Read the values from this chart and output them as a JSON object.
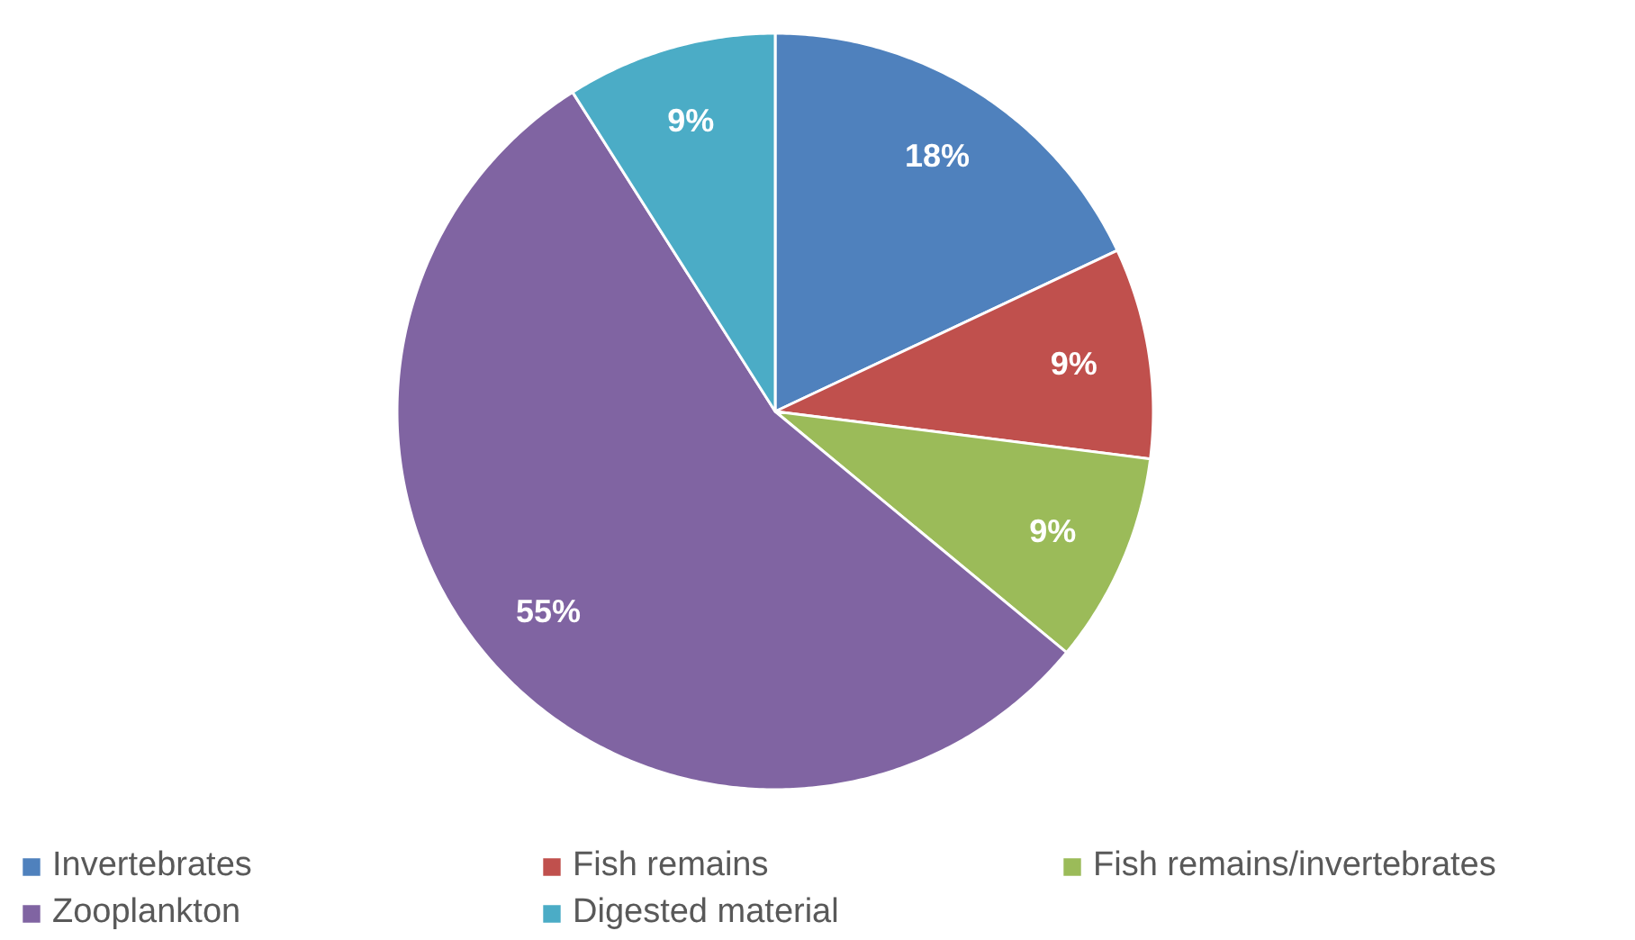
{
  "chart_data": {
    "type": "pie",
    "categories": [
      "Invertebrates",
      "Fish remains",
      "Fish remains/invertebrates",
      "Zooplankton",
      "Digested material"
    ],
    "values": [
      18,
      9,
      9,
      55,
      9
    ],
    "colors": [
      "#4f81bd",
      "#c0504d",
      "#9bbb59",
      "#8064a2",
      "#4bacc6"
    ],
    "value_labels": [
      "18%",
      "9%",
      "9%",
      "55%",
      "9%"
    ],
    "legend": "bottom"
  }
}
